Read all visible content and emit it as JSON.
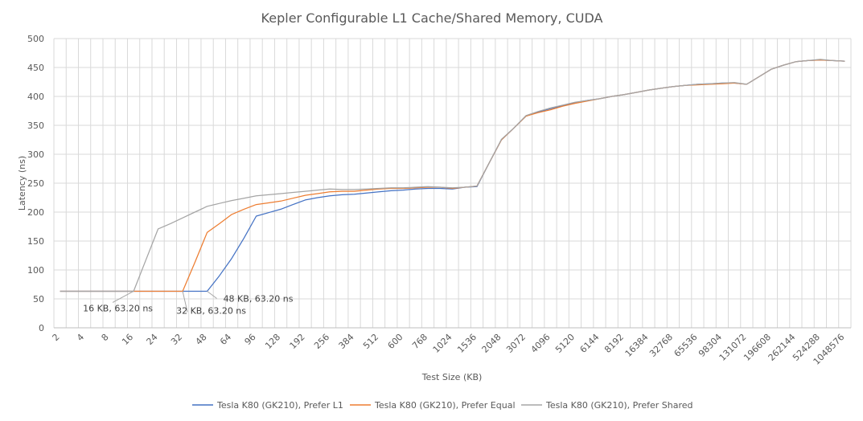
{
  "chart_data": {
    "type": "line",
    "title": "Kepler Configurable L1 Cache/Shared Memory, CUDA",
    "xlabel": "Test Size (KB)",
    "ylabel": "Latency (ns)",
    "ylim": [
      0,
      500
    ],
    "yticks": [
      0,
      50,
      100,
      150,
      200,
      250,
      300,
      350,
      400,
      450,
      500
    ],
    "grid": "vertical-and-horizontal",
    "legend_position": "bottom",
    "categories": [
      "2",
      "3",
      "4",
      "6",
      "8",
      "12",
      "16",
      "20",
      "24",
      "28",
      "32",
      "40",
      "48",
      "56",
      "64",
      "80",
      "96",
      "112",
      "128",
      "160",
      "192",
      "224",
      "256",
      "320",
      "384",
      "448",
      "512",
      "576",
      "600",
      "640",
      "768",
      "896",
      "1024",
      "1280",
      "1536",
      "1792",
      "2048",
      "2560",
      "3072",
      "3584",
      "4096",
      "4608",
      "5120",
      "5632",
      "6144",
      "7168",
      "8192",
      "12288",
      "16384",
      "24576",
      "32768",
      "49152",
      "65536",
      "81920",
      "98304",
      "114688",
      "131072",
      "163840",
      "196608",
      "229376",
      "262144",
      "393216",
      "524288",
      "786432",
      "1048576"
    ],
    "tick_labels": [
      "2",
      "4",
      "8",
      "16",
      "24",
      "32",
      "48",
      "64",
      "96",
      "128",
      "192",
      "256",
      "384",
      "512",
      "600",
      "768",
      "1024",
      "1536",
      "2048",
      "3072",
      "4096",
      "5120",
      "6144",
      "8192",
      "16384",
      "32768",
      "65536",
      "98304",
      "131072",
      "196608",
      "262144",
      "524288",
      "1048576"
    ],
    "series": [
      {
        "name": "Tesla K80 (GK210), Prefer L1",
        "color": "#4472c4",
        "values": [
          63.2,
          63.2,
          63.2,
          63.2,
          63.2,
          63.2,
          63.2,
          63.2,
          63.2,
          63.2,
          63.2,
          63.2,
          63.2,
          90,
          120,
          155,
          193,
          199,
          205,
          213,
          221,
          225,
          228,
          230,
          231,
          233,
          235,
          237,
          238,
          240,
          241,
          241,
          240,
          243,
          244,
          285,
          325,
          345,
          366,
          373,
          379,
          384,
          389,
          393,
          396,
          400,
          403,
          407,
          411,
          414,
          417,
          419,
          421,
          422,
          423,
          423,
          421,
          434,
          447,
          454,
          460,
          462,
          463,
          462,
          461
        ]
      },
      {
        "name": "Tesla K80 (GK210), Prefer Equal",
        "color": "#ed7d31",
        "values": [
          63.2,
          63.2,
          63.2,
          63.2,
          63.2,
          63.2,
          63.2,
          63.2,
          63.2,
          63.2,
          63.2,
          113,
          165,
          180,
          196,
          205,
          213,
          216,
          219,
          224,
          229,
          232,
          235,
          236,
          236,
          238,
          240,
          241,
          241,
          242,
          243,
          243,
          241,
          243,
          245,
          285,
          325,
          345,
          366,
          372,
          377,
          383,
          388,
          392,
          396,
          400,
          403,
          407,
          411,
          414,
          417,
          419,
          420,
          421,
          422,
          423,
          421,
          434,
          447,
          454,
          460,
          462,
          463,
          462,
          461
        ]
      },
      {
        "name": "Tesla K80 (GK210), Prefer Shared",
        "color": "#a5a5a5",
        "values": [
          63.2,
          63.2,
          63.2,
          63.2,
          63.2,
          63.2,
          63.2,
          117,
          171,
          180,
          190,
          200,
          210,
          215,
          220,
          224,
          228,
          230,
          232,
          234,
          236,
          238,
          240,
          239,
          239,
          240,
          241,
          242,
          242,
          243,
          244,
          243,
          242,
          243,
          245,
          285,
          326,
          345,
          367,
          374,
          380,
          385,
          390,
          393,
          396,
          400,
          403,
          407,
          411,
          414,
          417,
          419,
          421,
          422,
          423,
          424,
          421,
          434,
          447,
          454,
          460,
          462,
          464,
          462,
          461
        ]
      }
    ],
    "annotations": [
      {
        "text": "16 KB, 63.20 ns",
        "x": "16",
        "y": 63.2
      },
      {
        "text": "32 KB, 63.20 ns",
        "x": "32",
        "y": 63.2
      },
      {
        "text": "48 KB, 63.20 ns",
        "x": "48",
        "y": 63.2
      }
    ]
  }
}
